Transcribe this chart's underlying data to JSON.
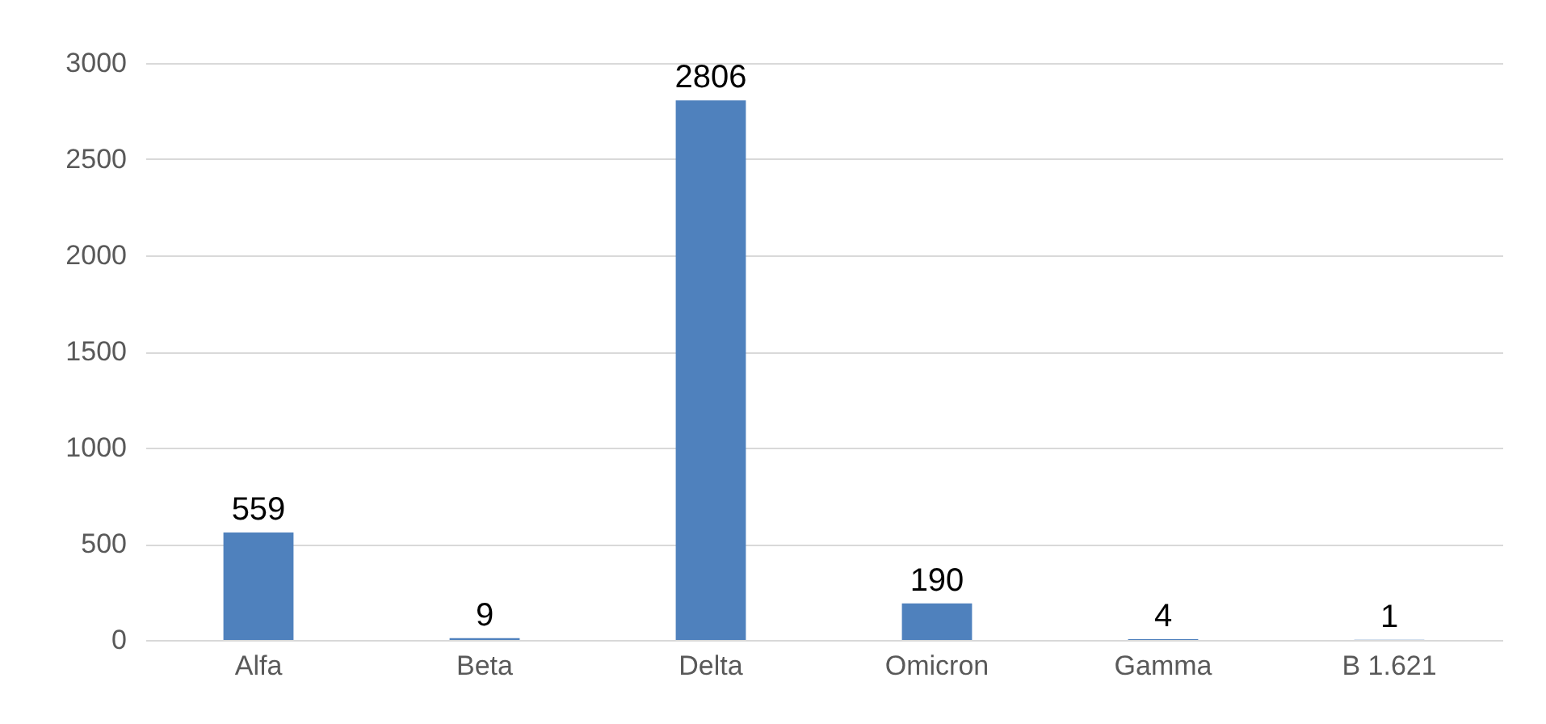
{
  "chart_data": {
    "type": "bar",
    "categories": [
      "Alfa",
      "Beta",
      "Delta",
      "Omicron",
      "Gamma",
      "B 1.621"
    ],
    "values": [
      559,
      9,
      2806,
      190,
      4,
      1
    ],
    "color": "#4f81bd",
    "ylim": [
      0,
      3000
    ],
    "yticks": [
      0,
      500,
      1000,
      1500,
      2000,
      2500,
      3000
    ],
    "grid": "y",
    "data_labels": true
  }
}
